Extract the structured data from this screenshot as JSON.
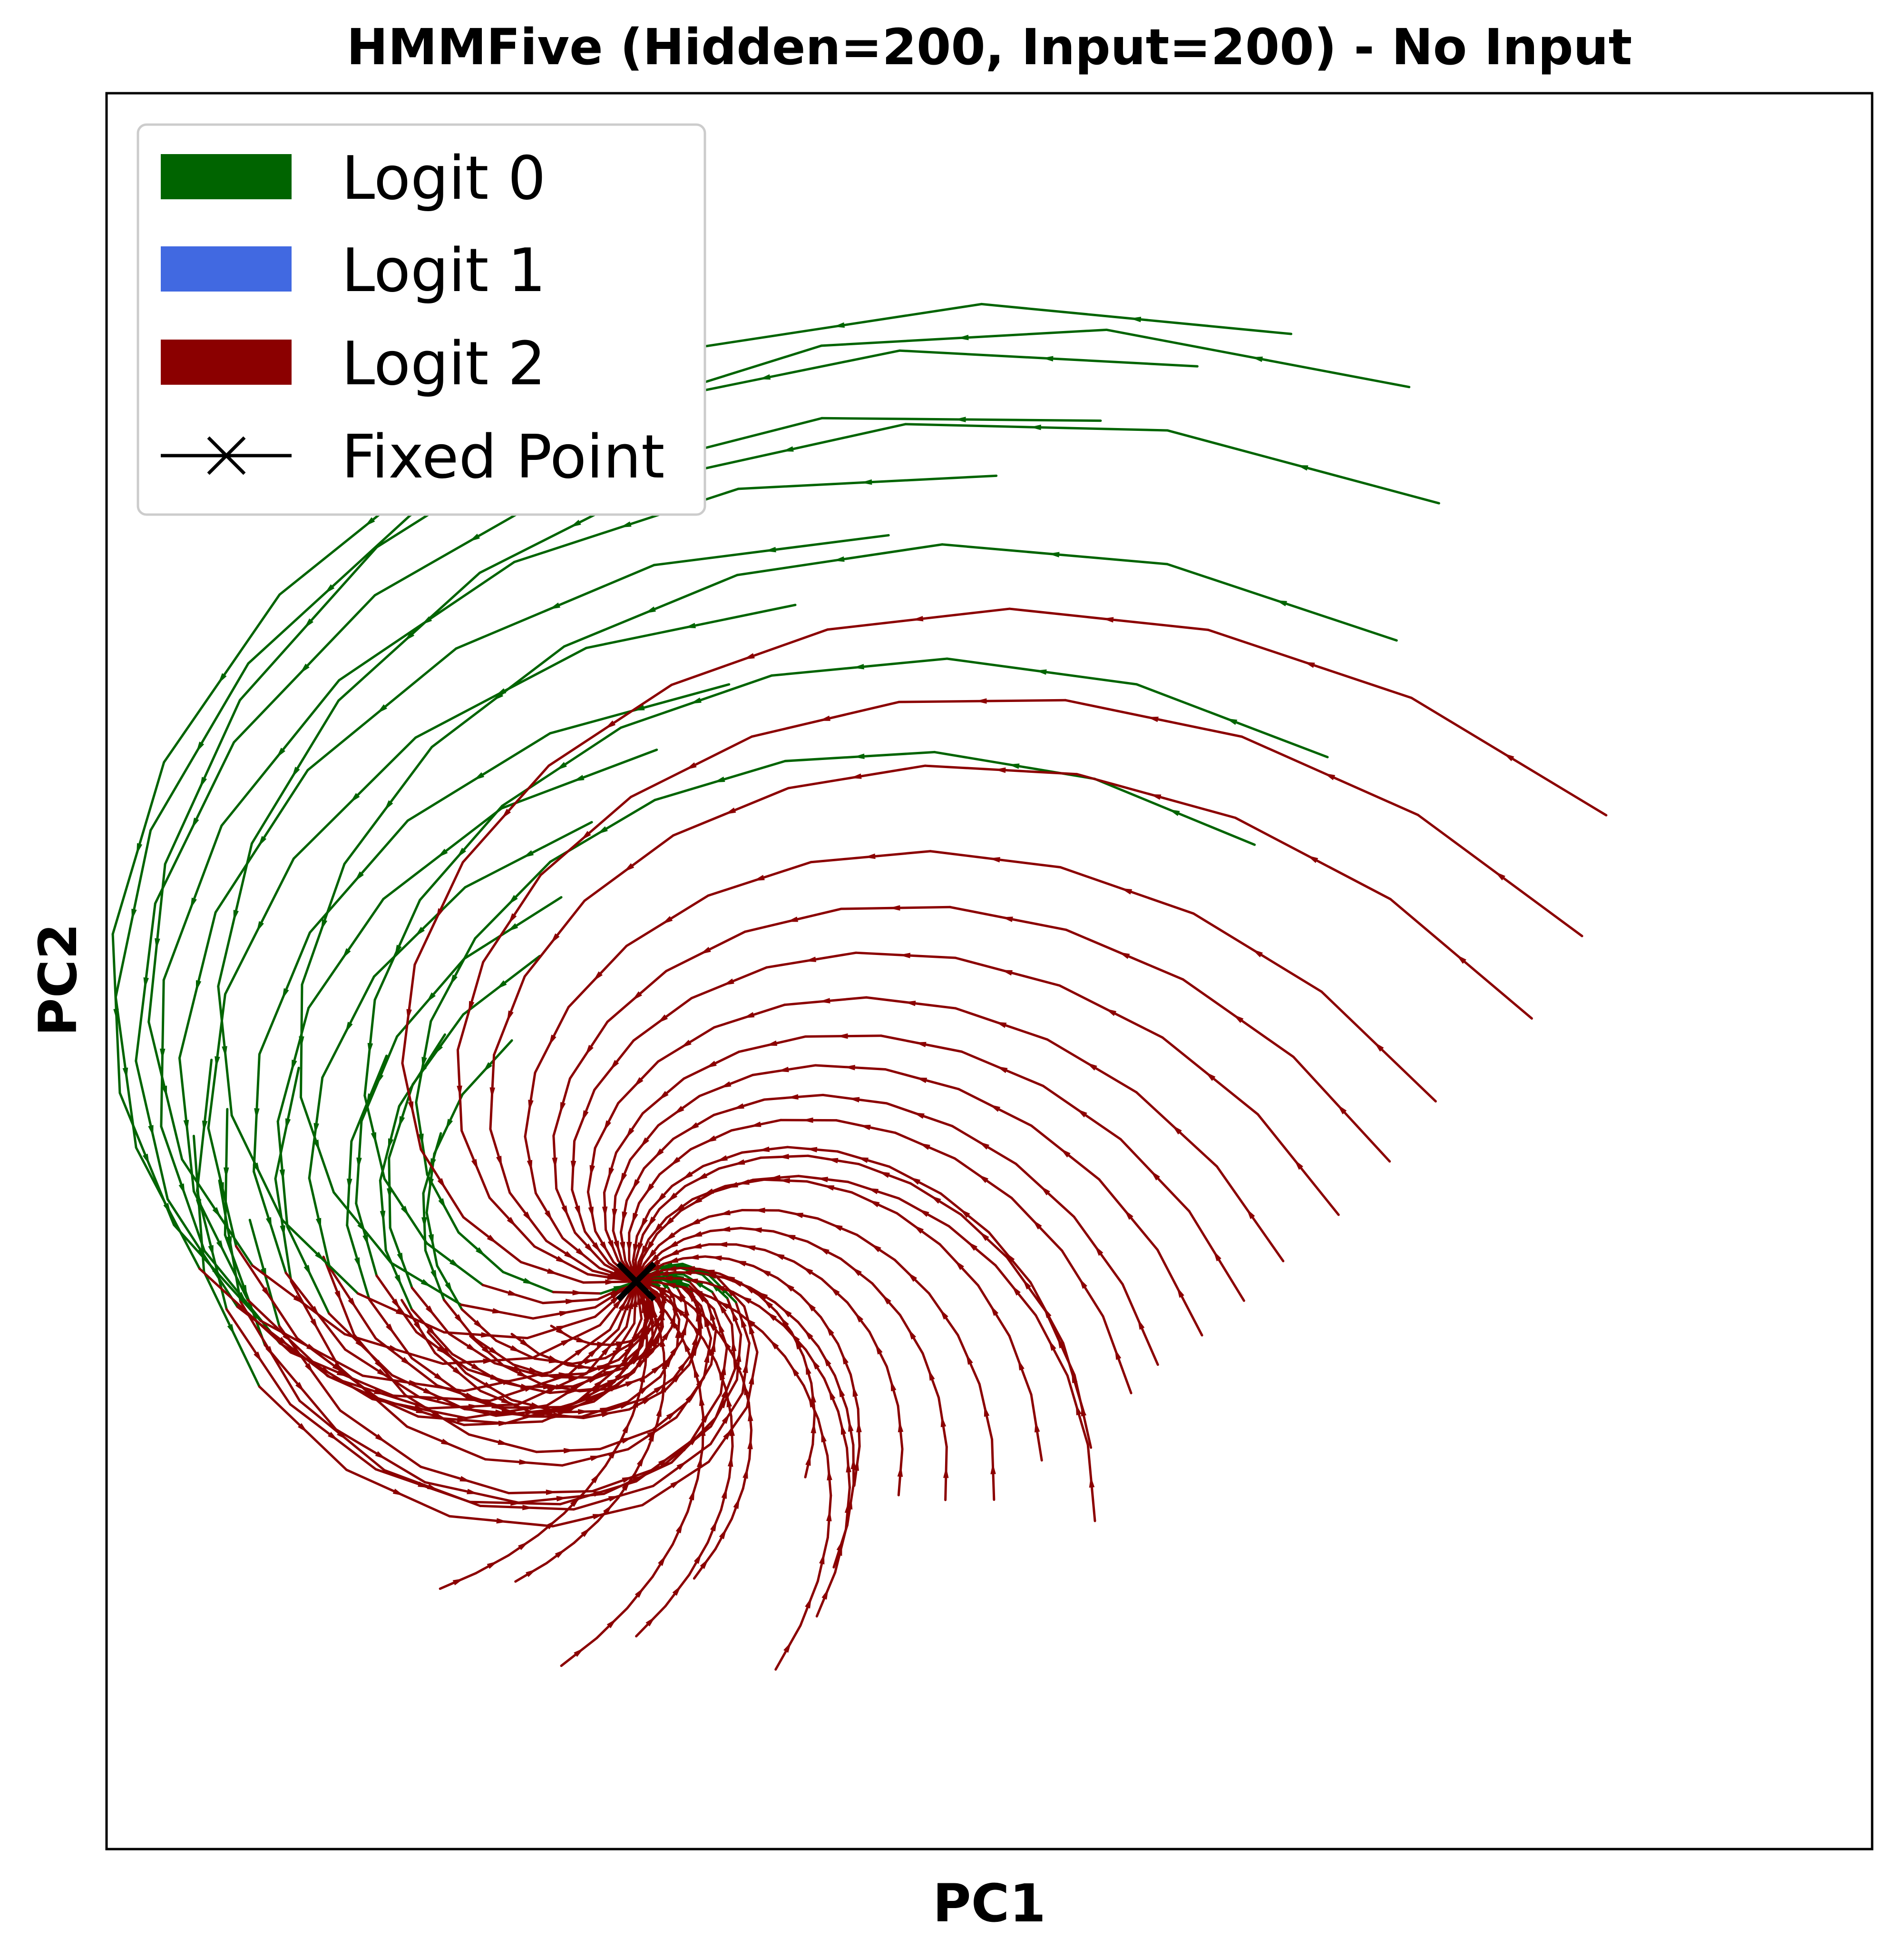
{
  "chart_data": {
    "type": "line",
    "title": "HMMFive (Hidden=200, Input=200) - No Input",
    "xlabel": "PC1",
    "ylabel": "PC2",
    "xlim": [
      -2.7,
      6.3
    ],
    "ylim": [
      -3.2,
      6.7
    ],
    "ticks_visible": false,
    "grid": false,
    "legend_position": "top-left",
    "legend": [
      {
        "label": "Logit 0",
        "color": "#006400",
        "kind": "patch"
      },
      {
        "label": "Logit 1",
        "color": "#4169e1",
        "kind": "patch"
      },
      {
        "label": "Logit 2",
        "color": "#8b0000",
        "kind": "patch"
      },
      {
        "label": "Fixed Point",
        "color": "#000000",
        "kind": "marker-line"
      }
    ],
    "fixed_point": {
      "x": 0.0,
      "y": 0.0
    },
    "trajectory_style": {
      "kind": "spiral-fan",
      "start_logit": 0,
      "switch_logit": 2
    },
    "trajectories": [
      {
        "r0": 2.4,
        "theta0": 160,
        "turn": 260,
        "logit": 0
      },
      {
        "r0": 2.3,
        "theta0": 155,
        "turn": 250,
        "logit": 0
      },
      {
        "r0": 2.2,
        "theta0": 165,
        "turn": 255,
        "logit": 0
      },
      {
        "r0": 2.5,
        "theta0": 150,
        "turn": 240,
        "logit": 0
      },
      {
        "r0": 2.0,
        "theta0": 170,
        "turn": 250,
        "logit": 0
      },
      {
        "r0": 2.1,
        "theta0": 145,
        "turn": 245,
        "logit": 0
      },
      {
        "r0": 1.8,
        "theta0": 135,
        "turn": 230,
        "logit": 0
      },
      {
        "r0": 1.6,
        "theta0": 175,
        "turn": 235,
        "logit": 0
      },
      {
        "r0": 1.7,
        "theta0": 125,
        "turn": 220,
        "logit": 0
      },
      {
        "r0": 1.5,
        "theta0": 115,
        "turn": 210,
        "logit": 0
      },
      {
        "r0": 1.3,
        "theta0": 140,
        "turn": 215,
        "logit": 0
      },
      {
        "r0": 1.2,
        "theta0": 185,
        "turn": 230,
        "logit": 0
      },
      {
        "r0": 1.1,
        "theta0": 195,
        "turn": 220,
        "logit": 0
      },
      {
        "r0": 0.9,
        "theta0": 200,
        "turn": 210,
        "logit": 0
      },
      {
        "r0": 0.7,
        "theta0": 205,
        "turn": 200,
        "logit": 0
      },
      {
        "r0": 0.5,
        "theta0": 210,
        "turn": 190,
        "logit": 0
      },
      {
        "r0": 1.9,
        "theta0": 105,
        "turn": 215,
        "logit": 0
      },
      {
        "r0": 2.2,
        "theta0": 100,
        "turn": 220,
        "logit": 0
      },
      {
        "r0": 2.6,
        "theta0": 95,
        "turn": 230,
        "logit": 0
      },
      {
        "r0": 3.0,
        "theta0": 88,
        "turn": 230,
        "logit": 0
      },
      {
        "r0": 3.4,
        "theta0": 82,
        "turn": 225,
        "logit": 0
      },
      {
        "r0": 3.9,
        "theta0": 78,
        "turn": 225,
        "logit": 0
      },
      {
        "r0": 4.4,
        "theta0": 73,
        "turn": 220,
        "logit": 0
      },
      {
        "r0": 4.9,
        "theta0": 68,
        "turn": 215,
        "logit": 0
      },
      {
        "r0": 5.4,
        "theta0": 64,
        "turn": 210,
        "logit": 0
      },
      {
        "r0": 5.9,
        "theta0": 61,
        "turn": 205,
        "logit": 0
      },
      {
        "r0": 6.3,
        "theta0": 58,
        "turn": 200,
        "logit": 0
      },
      {
        "r0": 6.4,
        "theta0": 52,
        "turn": 195,
        "logit": 0
      },
      {
        "r0": 6.0,
        "theta0": 47,
        "turn": 190,
        "logit": 0
      },
      {
        "r0": 5.3,
        "theta0": 43,
        "turn": 185,
        "logit": 0
      },
      {
        "r0": 4.6,
        "theta0": 40,
        "turn": 180,
        "logit": 0
      },
      {
        "r0": 4.0,
        "theta0": 38,
        "turn": 175,
        "logit": 0
      },
      {
        "r0": 5.6,
        "theta0": 28,
        "turn": 165,
        "logit": 2
      },
      {
        "r0": 5.2,
        "theta0": 22,
        "turn": 160,
        "logit": 2
      },
      {
        "r0": 4.8,
        "theta0": 18,
        "turn": 158,
        "logit": 2
      },
      {
        "r0": 4.2,
        "theta0": 14,
        "turn": 155,
        "logit": 2
      },
      {
        "r0": 3.9,
        "theta0": 10,
        "turn": 150,
        "logit": 2
      },
      {
        "r0": 3.6,
        "theta0": 6,
        "turn": 148,
        "logit": 2
      },
      {
        "r0": 3.3,
        "theta0": 2,
        "turn": 145,
        "logit": 2
      },
      {
        "r0": 3.1,
        "theta0": -2,
        "turn": 140,
        "logit": 2
      },
      {
        "r0": 2.9,
        "theta0": -6,
        "turn": 138,
        "logit": 2
      },
      {
        "r0": 2.7,
        "theta0": -10,
        "turn": 135,
        "logit": 2
      },
      {
        "r0": 2.6,
        "theta0": -14,
        "turn": 130,
        "logit": 2
      },
      {
        "r0": 2.4,
        "theta0": -18,
        "turn": 125,
        "logit": 2
      },
      {
        "r0": 2.5,
        "theta0": -22,
        "turn": 122,
        "logit": 2
      },
      {
        "r0": 2.3,
        "theta0": -26,
        "turn": 118,
        "logit": 2
      },
      {
        "r0": 2.7,
        "theta0": -30,
        "turn": 115,
        "logit": 2
      },
      {
        "r0": 2.2,
        "theta0": -34,
        "turn": 110,
        "logit": 2
      },
      {
        "r0": 2.0,
        "theta0": -38,
        "turn": 105,
        "logit": 2
      },
      {
        "r0": 1.8,
        "theta0": -42,
        "turn": 100,
        "logit": 2
      },
      {
        "r0": 1.6,
        "theta0": -46,
        "turn": 95,
        "logit": 2
      },
      {
        "r0": 1.4,
        "theta0": -52,
        "turn": 90,
        "logit": 2
      },
      {
        "r0": 1.9,
        "theta0": -58,
        "turn": 85,
        "logit": 2
      },
      {
        "r0": 2.1,
        "theta0": -64,
        "turn": 80,
        "logit": 2
      },
      {
        "r0": 2.3,
        "theta0": -72,
        "turn": 75,
        "logit": 2
      },
      {
        "r0": 1.7,
        "theta0": -80,
        "turn": 70,
        "logit": 2
      },
      {
        "r0": 2.0,
        "theta0": -90,
        "turn": 65,
        "logit": 2
      },
      {
        "r0": 2.2,
        "theta0": -100,
        "turn": 60,
        "logit": 2
      },
      {
        "r0": 1.8,
        "theta0": -110,
        "turn": 55,
        "logit": 2
      },
      {
        "r0": 2.0,
        "theta0": -120,
        "turn": 50,
        "logit": 2
      }
    ]
  }
}
